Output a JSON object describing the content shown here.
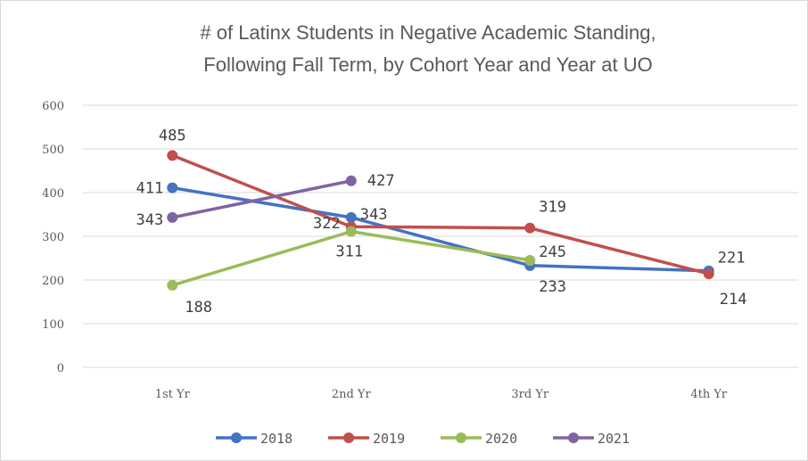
{
  "chart_data": {
    "type": "line",
    "title": "# of Latinx Students in Negative Academic Standing,",
    "subtitle": "Following Fall Term, by Cohort Year and Year at UO",
    "categories": [
      "1st Yr",
      "2nd Yr",
      "3rd Yr",
      "4th Yr"
    ],
    "ylim": [
      0,
      600
    ],
    "yticks": [
      "600",
      "500",
      "400",
      "300",
      "200",
      "100",
      "0"
    ],
    "grid": true,
    "legend_position": "bottom",
    "series": [
      {
        "name": "2018",
        "color": "#4472c4",
        "values": [
          411,
          343,
          233,
          221
        ],
        "labels": [
          "411",
          "343",
          "233",
          "221"
        ]
      },
      {
        "name": "2019",
        "color": "#c0504d",
        "values": [
          485,
          322,
          319,
          214
        ],
        "labels": [
          "485",
          "322",
          "319",
          "214"
        ]
      },
      {
        "name": "2020",
        "color": "#9bbb59",
        "values": [
          188,
          311,
          245,
          null
        ],
        "labels": [
          "188",
          "311",
          "245",
          null
        ]
      },
      {
        "name": "2021",
        "color": "#8064a2",
        "values": [
          343,
          427,
          null,
          null
        ],
        "labels": [
          "343",
          "427",
          null,
          null
        ]
      }
    ]
  }
}
